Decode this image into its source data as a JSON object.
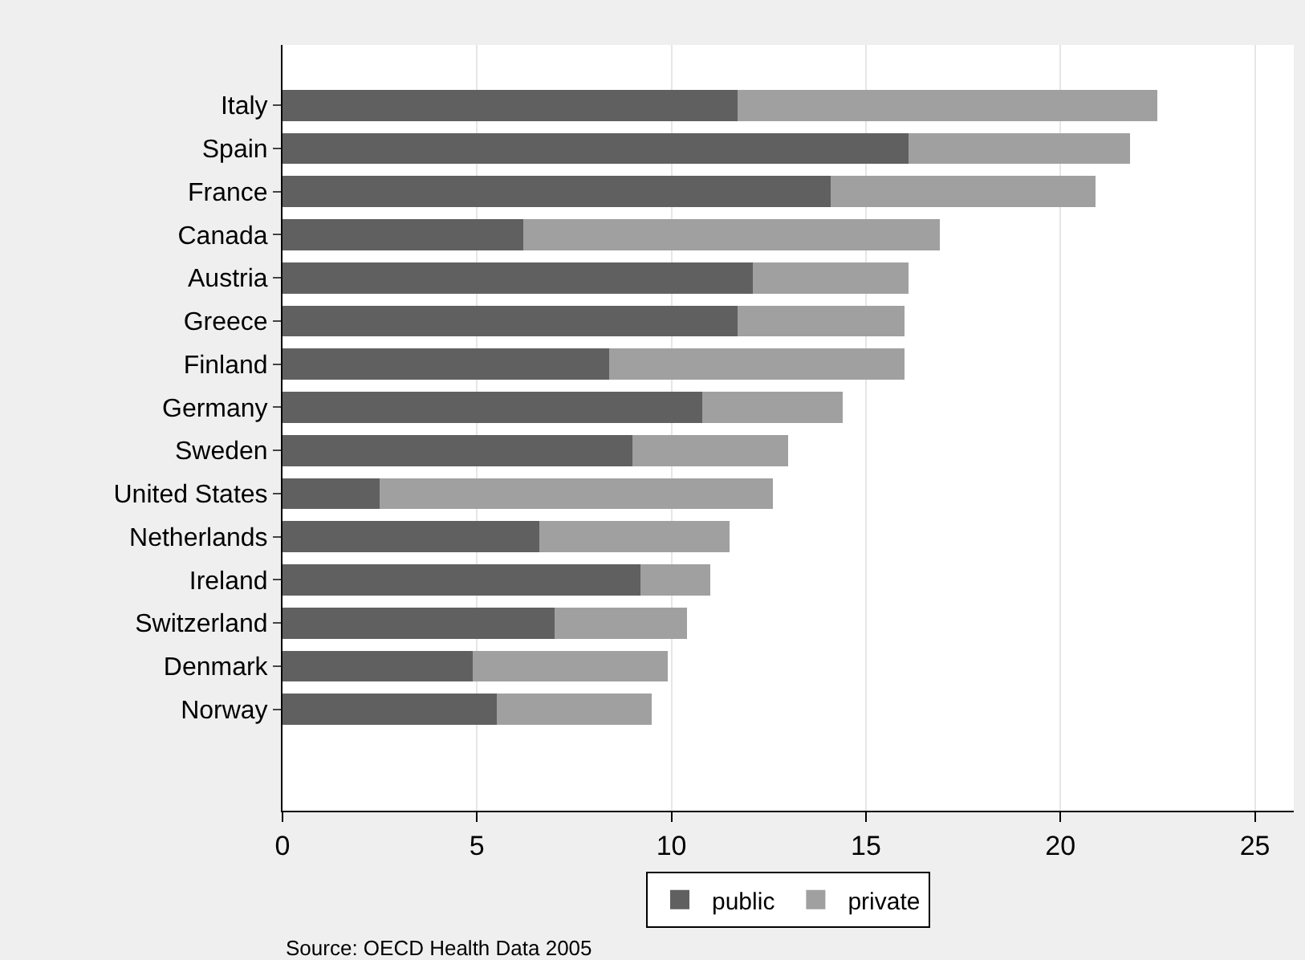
{
  "chart_data": {
    "type": "bar",
    "orientation": "horizontal",
    "stacked": true,
    "categories": [
      "Italy",
      "Spain",
      "France",
      "Canada",
      "Austria",
      "Greece",
      "Finland",
      "Germany",
      "Sweden",
      "United States",
      "Netherlands",
      "Ireland",
      "Switzerland",
      "Denmark",
      "Norway"
    ],
    "series": [
      {
        "name": "public",
        "color": "#606060",
        "values": [
          11.7,
          16.1,
          14.1,
          6.2,
          12.1,
          11.7,
          8.4,
          10.8,
          9.0,
          2.5,
          6.6,
          9.2,
          7.0,
          4.9,
          5.5
        ]
      },
      {
        "name": "private",
        "color": "#a0a0a0",
        "values": [
          10.8,
          5.7,
          6.8,
          10.7,
          4.0,
          4.3,
          7.6,
          3.6,
          4.0,
          10.1,
          4.9,
          1.8,
          3.4,
          5.0,
          4.0
        ]
      }
    ],
    "xlim": [
      0,
      26
    ],
    "xticks": [
      0,
      5,
      10,
      15,
      20,
      25
    ],
    "grid": "x",
    "legend": "bottom",
    "annotations": [
      "Source: OECD Health Data 2005"
    ]
  }
}
